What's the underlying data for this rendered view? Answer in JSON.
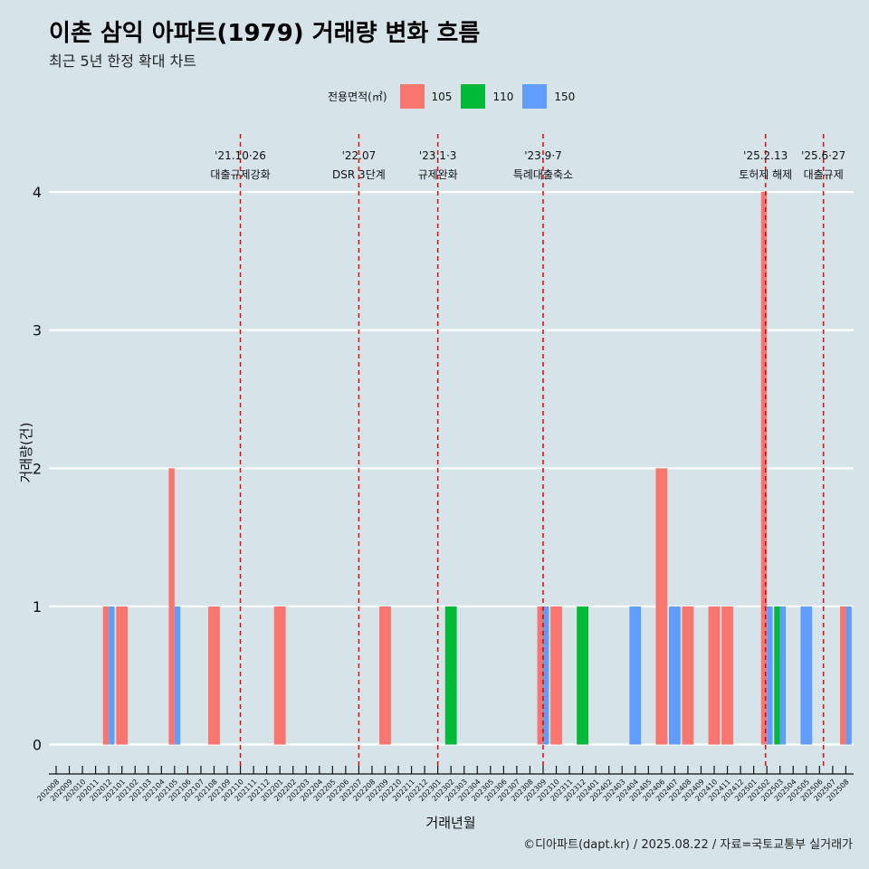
{
  "header": {
    "title": "이촌 삼익 아파트(1979) 거래량 변화 흐름",
    "subtitle": "최근 5년 한정 확대 차트"
  },
  "legend": {
    "title": "전용면적(㎡)",
    "items": [
      {
        "label": "105",
        "color": "#f8766d"
      },
      {
        "label": "110",
        "color": "#00ba38"
      },
      {
        "label": "150",
        "color": "#619cff"
      }
    ]
  },
  "caption": "©디아파트(dapt.kr) / 2025.08.22 / 자료=국토교통부 실거래가",
  "chart_data": {
    "type": "bar",
    "xlabel": "거래년월",
    "ylabel": "거래량(건)",
    "ylim": [
      -0.18,
      4.42
    ],
    "yticks": [
      0,
      1,
      2,
      3,
      4
    ],
    "categories": [
      "202008",
      "202009",
      "202010",
      "202011",
      "202012",
      "202101",
      "202102",
      "202103",
      "202104",
      "202105",
      "202106",
      "202107",
      "202108",
      "202109",
      "202110",
      "202111",
      "202112",
      "202201",
      "202202",
      "202203",
      "202204",
      "202205",
      "202206",
      "202207",
      "202208",
      "202209",
      "202210",
      "202211",
      "202212",
      "202301",
      "202302",
      "202303",
      "202304",
      "202305",
      "202306",
      "202307",
      "202308",
      "202309",
      "202310",
      "202311",
      "202312",
      "202401",
      "202402",
      "202403",
      "202404",
      "202405",
      "202406",
      "202407",
      "202408",
      "202409",
      "202410",
      "202411",
      "202412",
      "202501",
      "202502",
      "202503",
      "202504",
      "202505",
      "202506",
      "202507",
      "202508"
    ],
    "series": [
      {
        "name": "105",
        "color": "#f8766d",
        "points": [
          [
            "202012",
            1
          ],
          [
            "202101",
            1
          ],
          [
            "202105",
            2
          ],
          [
            "202108",
            1
          ],
          [
            "202201",
            1
          ],
          [
            "202209",
            1
          ],
          [
            "202309",
            1
          ],
          [
            "202310",
            1
          ],
          [
            "202406",
            2
          ],
          [
            "202408",
            1
          ],
          [
            "202410",
            1
          ],
          [
            "202411",
            1
          ],
          [
            "202502",
            4
          ],
          [
            "202508",
            1
          ]
        ]
      },
      {
        "name": "110",
        "color": "#00ba38",
        "points": [
          [
            "202302",
            1
          ],
          [
            "202312",
            1
          ],
          [
            "202503",
            1
          ]
        ]
      },
      {
        "name": "150",
        "color": "#619cff",
        "points": [
          [
            "202012",
            1
          ],
          [
            "202105",
            1
          ],
          [
            "202309",
            1
          ],
          [
            "202404",
            1
          ],
          [
            "202407",
            1
          ],
          [
            "202502",
            1
          ],
          [
            "202503",
            1
          ],
          [
            "202505",
            1
          ],
          [
            "202508",
            1
          ]
        ]
      }
    ],
    "annotations": [
      {
        "month": "202110",
        "offset": 0.0,
        "date": "'21.10·26",
        "label": "대출규제강화"
      },
      {
        "month": "202207",
        "offset": 0.0,
        "date": "'22.07",
        "label": "DSR 3단계"
      },
      {
        "month": "202301",
        "offset": 0.0,
        "date": "'23.1·3",
        "label": "규제완화"
      },
      {
        "month": "202309",
        "offset": 0.0,
        "date": "'23.9·7",
        "label": "특례대출축소"
      },
      {
        "month": "202502",
        "offset": -0.1,
        "date": "'25.2.13",
        "label": "토허제 해제"
      },
      {
        "month": "202506",
        "offset": 0.3,
        "date": "'25.6·27",
        "label": "대출규제"
      }
    ]
  }
}
